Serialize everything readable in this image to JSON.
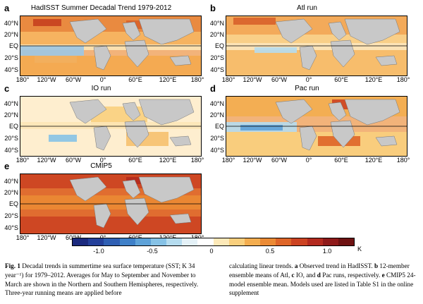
{
  "panels": [
    {
      "letter": "a",
      "title": "HadISST Summer Decadal Trend 1979-2012",
      "style": "obs"
    },
    {
      "letter": "b",
      "title": "Atl run",
      "style": "atl"
    },
    {
      "letter": "c",
      "title": "IO run",
      "style": "io"
    },
    {
      "letter": "d",
      "title": "Pac run",
      "style": "pac"
    },
    {
      "letter": "e",
      "title": "CMIP5",
      "style": "cmip"
    }
  ],
  "lat_labels": [
    "40°N",
    "20°N",
    "EQ",
    "20°S",
    "40°S"
  ],
  "lon_labels": [
    "180°",
    "120°W",
    "60°W",
    "0°",
    "60°E",
    "120°E",
    "180°"
  ],
  "colorbar": {
    "colors": [
      "#1b2a7e",
      "#24409a",
      "#2f5fb3",
      "#3f80c8",
      "#5ea2d8",
      "#86c2e6",
      "#b5dcef",
      "#e4f1f7",
      "#ffffff",
      "#fde9b8",
      "#f9cf7d",
      "#f3ad4f",
      "#eb8a34",
      "#de6528",
      "#cc4322",
      "#b32a1f",
      "#8f1a1a",
      "#6e1212"
    ],
    "ticks": [
      "-1.0",
      "-0.5",
      "0",
      "0.5",
      "1.0"
    ],
    "unit": "K"
  },
  "caption": {
    "label": "Fig. 1",
    "left": "Decadal trends in summertime sea surface temperature (SST; K 34 year⁻¹) for 1979–2012. Averages for May to September and November to March are shown in the Northern and Southern Hemispheres, respectively. Three-year running means are applied before",
    "right_a": "calculating linear trends.",
    "a_letter": "a",
    "a_text": "Observed trend in HadISST.",
    "b_letter": "b",
    "b_text": "12-member ensemble means of Atl,",
    "c_letter": "c",
    "c_text": "IO, and",
    "d_letter": "d",
    "d_text": "Pac runs, respectively.",
    "e_letter": "e",
    "e_text": "CMIP5 24-model ensemble mean. Models used are listed in Table S1 in the online supplement"
  }
}
